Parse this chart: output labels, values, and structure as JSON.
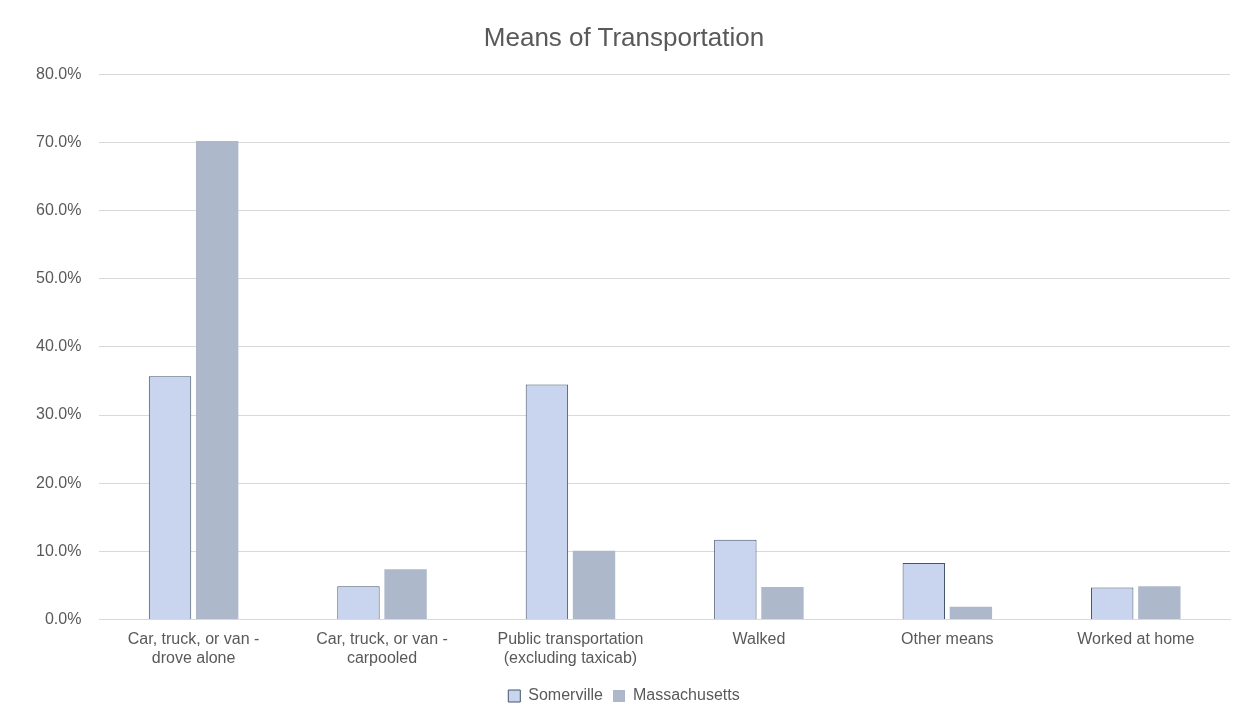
{
  "chart_data": {
    "type": "bar",
    "title": "Means of Transportation",
    "categories": [
      "Car, truck, or van - drove alone",
      "Car, truck, or van - carpooled",
      "Public transportation (excluding taxicab)",
      "Walked",
      "Other means",
      "Worked at home"
    ],
    "series": [
      {
        "name": "Somerville",
        "color": "#c9d5ee",
        "values": [
          35.7,
          4.9,
          34.5,
          11.7,
          8.3,
          4.7
        ]
      },
      {
        "name": "Massachusetts",
        "color": "#adb9ca",
        "values": [
          70.2,
          7.4,
          10.1,
          4.8,
          1.9,
          4.9
        ]
      }
    ],
    "ylim": [
      0,
      80
    ],
    "yticks": [
      {
        "value": 0,
        "label": "0.0%"
      },
      {
        "value": 10,
        "label": "10.0%"
      },
      {
        "value": 20,
        "label": "20.0%"
      },
      {
        "value": 30,
        "label": "30.0%"
      },
      {
        "value": 40,
        "label": "40.0%"
      },
      {
        "value": 50,
        "label": "50.0%"
      },
      {
        "value": 60,
        "label": "60.0%"
      },
      {
        "value": 70,
        "label": "70.0%"
      },
      {
        "value": 80,
        "label": "80.0%"
      }
    ],
    "grid": "y",
    "legend": "bottom"
  }
}
